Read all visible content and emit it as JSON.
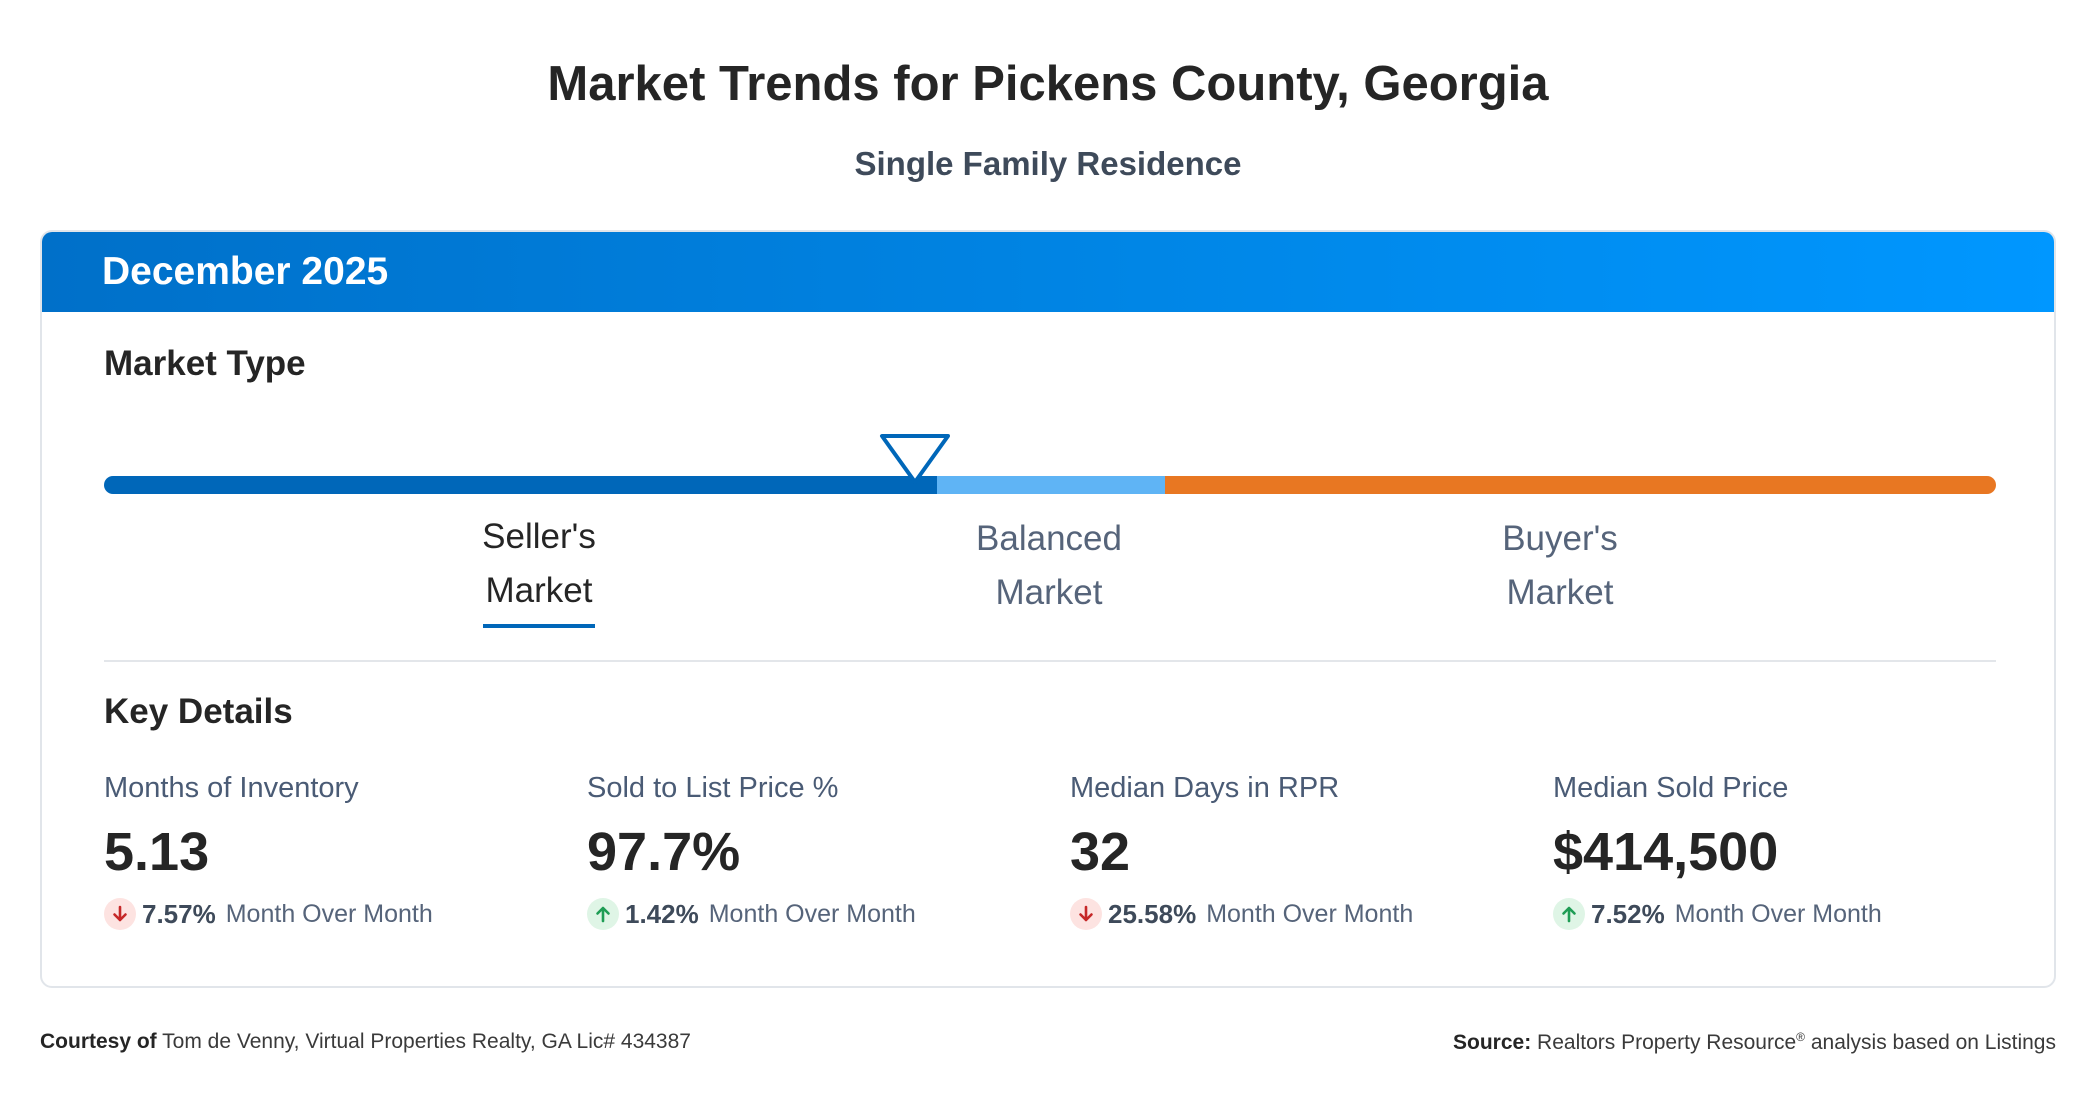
{
  "title": "Market Trends for Pickens County, Georgia",
  "subtitle": "Single Family Residence",
  "period": "December 2025",
  "colors": {
    "header_gradient_start": "#0070c9",
    "header_gradient_end": "#0097ff",
    "seller": "#0067b9",
    "balanced": "#5fb4f5",
    "buyer": "#e87722",
    "down": "#c62828",
    "up": "#1f9d55"
  },
  "market_type": {
    "heading": "Market Type",
    "labels": {
      "seller_line1": "Seller's",
      "seller_line2": "Market",
      "balanced_line1": "Balanced",
      "balanced_line2": "Market",
      "buyer_line1": "Buyer's",
      "buyer_line2": "Market"
    },
    "selected": "Seller's Market",
    "marker_icon": "triangle-down-marker-icon"
  },
  "key_details": {
    "heading": "Key Details",
    "metrics": [
      {
        "name": "Months of Inventory",
        "value": "5.13",
        "change": "7.57%",
        "direction": "down",
        "period": "Month Over Month"
      },
      {
        "name": "Sold to List Price %",
        "value": "97.7%",
        "change": "1.42%",
        "direction": "up",
        "period": "Month Over Month"
      },
      {
        "name": "Median Days in RPR",
        "value": "32",
        "change": "25.58%",
        "direction": "down",
        "period": "Month Over Month"
      },
      {
        "name": "Median Sold Price",
        "value": "$414,500",
        "change": "7.52%",
        "direction": "up",
        "period": "Month Over Month"
      }
    ]
  },
  "footer": {
    "courtesy_label": "Courtesy of",
    "courtesy_text": "Tom de Venny, Virtual Properties Realty, GA Lic# 434387",
    "source_label": "Source:",
    "source_text_a": "Realtors Property Resource",
    "source_reg": "®",
    "source_text_b": " analysis based on Listings"
  }
}
